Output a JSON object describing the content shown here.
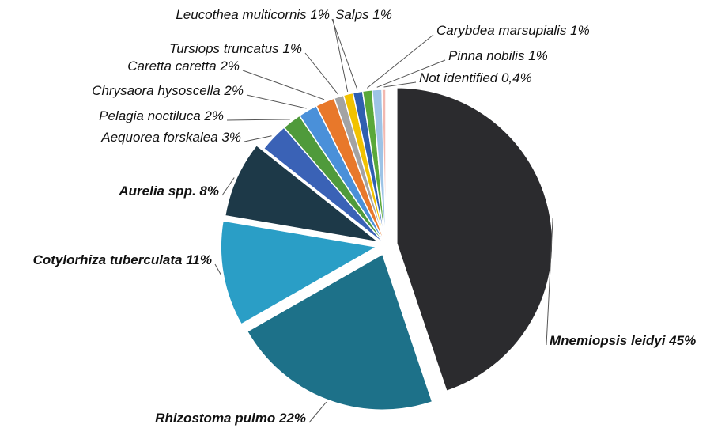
{
  "chart_data": {
    "type": "pie",
    "categories": [
      "Mnemiopsis leidyi",
      "Rhizostoma pulmo",
      "Cotylorhiza tuberculata",
      "Aurelia spp.",
      "Aequorea forskalea",
      "Pelagia noctiluca",
      "Chrysaora hysoscella",
      "Caretta caretta",
      "Tursiops truncatus",
      "Leucothea multicornis",
      "Salps",
      "Carybdea marsupialis",
      "Pinna nobilis",
      "Not identified"
    ],
    "values": [
      45,
      22,
      11,
      8,
      3,
      2,
      2,
      2,
      1,
      1,
      1,
      1,
      1,
      0.4
    ],
    "value_labels": [
      "45%",
      "22%",
      "11%",
      "8%",
      "3%",
      "2%",
      "2%",
      "2%",
      "1%",
      "1%",
      "1%",
      "1%",
      "1%",
      "0,4%"
    ],
    "colors": [
      "#2b2b2e",
      "#1d7189",
      "#2a9ec6",
      "#1d3948",
      "#3a62b6",
      "#4f9a3b",
      "#4a90d9",
      "#e8782a",
      "#a3a3a3",
      "#f2c200",
      "#2f5fb0",
      "#5aa83a",
      "#9dc3e6",
      "#f2b8b0"
    ]
  }
}
